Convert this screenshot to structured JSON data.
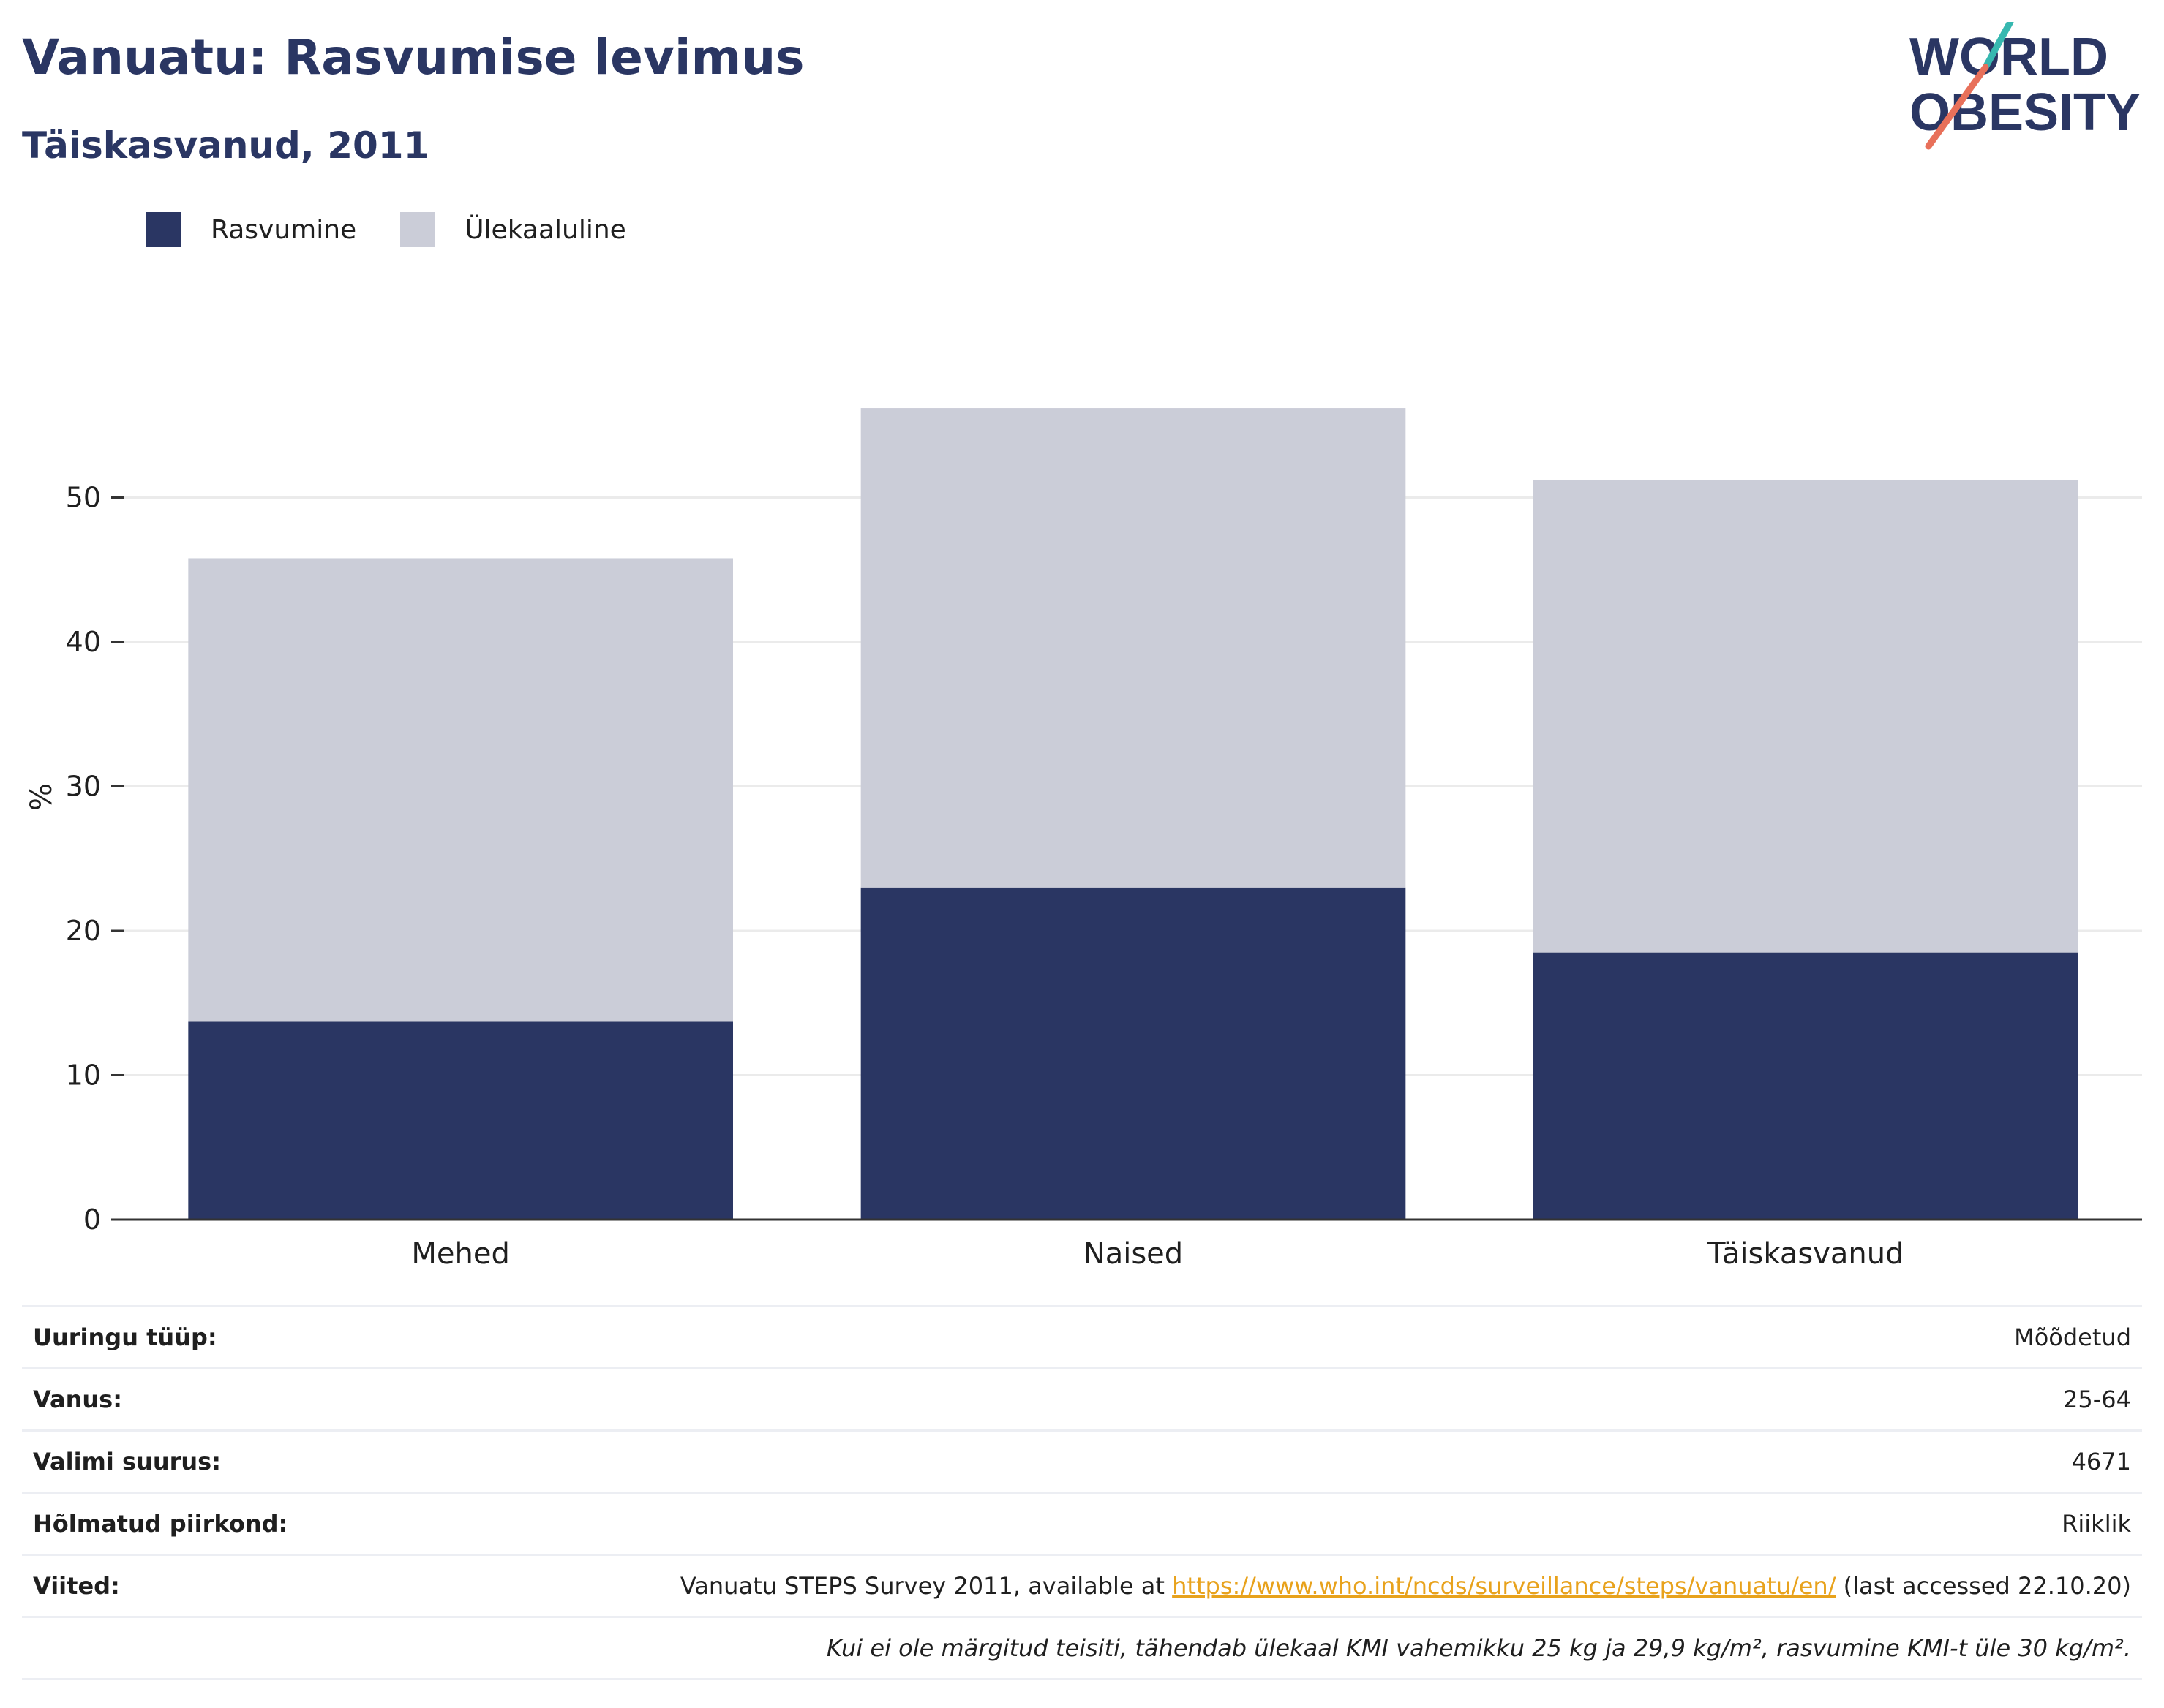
{
  "header": {
    "title": "Vanuatu: Rasvumise levimus",
    "subtitle": "Täiskasvanud, 2011"
  },
  "logo": {
    "line1": "WORLD",
    "line2": "OBESITY"
  },
  "legend": [
    {
      "label": "Rasvumine",
      "color": "#2a3663"
    },
    {
      "label": "Ülekaaluline",
      "color": "#cbcdd8"
    }
  ],
  "chart_data": {
    "type": "bar",
    "stacked": true,
    "categories": [
      "Mehed",
      "Naised",
      "Täiskasvanud"
    ],
    "series": [
      {
        "name": "Rasvumine",
        "values": [
          13.7,
          23.0,
          18.5
        ],
        "color": "#2a3663"
      },
      {
        "name": "Ülekaaluline",
        "values": [
          32.1,
          33.2,
          32.7
        ],
        "color": "#cbcdd8"
      }
    ],
    "ylabel": "%",
    "yticks": [
      0,
      10,
      20,
      30,
      40,
      50
    ],
    "ylim": [
      0,
      60
    ],
    "grid": true,
    "legend_position": "top-left"
  },
  "info": {
    "rows": [
      {
        "key": "Uuringu tüüp:",
        "value": "Mõõdetud"
      },
      {
        "key": "Vanus:",
        "value": "25-64"
      },
      {
        "key": "Valimi suurus:",
        "value": "4671"
      },
      {
        "key": "Hõlmatud piirkond:",
        "value": "Riiklik"
      }
    ],
    "references": {
      "key": "Viited:",
      "before": "Vanuatu STEPS Survey 2011, available at ",
      "link": "https://www.who.int/ncds/surveillance/steps/vanuatu/en/",
      "after": " (last accessed 22.10.20)"
    },
    "note": "Kui ei ole märgitud teisiti, tähendab ülekaal KMI vahemikku 25 kg ja 29,9 kg/m², rasvumine KMI-t üle 30 kg/m²."
  }
}
